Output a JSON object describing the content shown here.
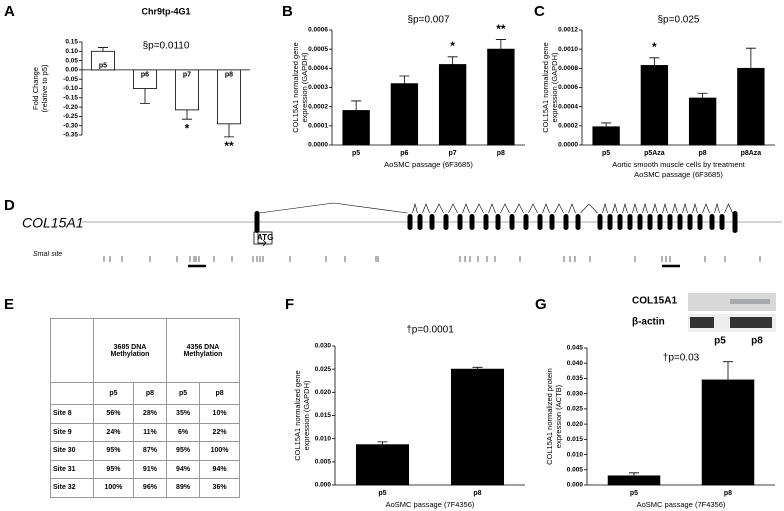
{
  "panels": [
    "A",
    "B",
    "C",
    "D",
    "E",
    "F",
    "G"
  ],
  "chart_data": [
    {
      "type": "bar",
      "title": "Chr9tp-4G1",
      "ylabel": [
        "Fold Change",
        "(relative to p5)"
      ],
      "categories": [
        "p5",
        "p6",
        "p7",
        "p8"
      ],
      "values": [
        0.1,
        -0.1,
        -0.215,
        -0.29
      ],
      "errors": [
        0.02,
        0.08,
        0.05,
        0.07
      ],
      "significance": [
        null,
        null,
        "*",
        "**"
      ],
      "annotation": "§p=0.0110",
      "color": "#ffffff",
      "ylim": [
        -0.35,
        0.15
      ],
      "yticks": [
        0.15,
        {
          "value": 0.1,
          "label": "0.10"
        },
        0.05,
        {
          "value": 0,
          "label": "0.00"
        },
        -0.05,
        {
          "value": -0.1,
          "label": "-0.10"
        },
        -0.15,
        {
          "value": -0.2,
          "label": "-0.20"
        },
        -0.25,
        {
          "value": -0.3,
          "label": "-0.30"
        },
        -0.35
      ]
    },
    {
      "type": "bar",
      "ylabel": [
        "COL15A1 normalized gene",
        "expression (GAPDH)"
      ],
      "xlabel": [
        "AoSMC passage (6F3685)"
      ],
      "categories": [
        "p5",
        "p6",
        "p7",
        "p8"
      ],
      "values": [
        0.00018,
        0.00032,
        0.00042,
        0.0005
      ],
      "errors": [
        5e-05,
        4e-05,
        4e-05,
        5e-05
      ],
      "significance": [
        null,
        null,
        "*",
        "**"
      ],
      "annotation": "§p=0.007",
      "color": "#000000",
      "ylim": [
        0,
        0.0006
      ],
      "yticks": [
        {
          "value": 0,
          "label": "0.0000"
        },
        {
          "value": 0.0001,
          "label": "0.0001"
        },
        {
          "value": 0.0002,
          "label": "0.0002"
        },
        {
          "value": 0.0003,
          "label": "0.0003"
        },
        {
          "value": 0.0004,
          "label": "0.0004"
        },
        {
          "value": 0.0005,
          "label": "0.0005"
        },
        {
          "value": 0.0006,
          "label": "0.0006"
        }
      ]
    },
    {
      "type": "bar",
      "ylabel": [
        "COL15A1 normalized gene",
        "expression (GAPDH)"
      ],
      "xlabel": [
        "Aortic smooth muscle cells by treatment",
        "AoSMC passage (6F3685)"
      ],
      "categories": [
        "p5",
        "p5Aza",
        "p8",
        "p8Aza"
      ],
      "values": [
        0.00019,
        0.00083,
        0.00049,
        0.0008
      ],
      "errors": [
        4e-05,
        8e-05,
        5e-05,
        0.00021
      ],
      "significance": [
        null,
        "*",
        null,
        null
      ],
      "annotation": "§p=0.025",
      "color": "#000000",
      "ylim": [
        0,
        0.0012
      ],
      "yticks": [
        {
          "value": 0,
          "label": "0.0000"
        },
        {
          "value": 0.0002,
          "label": "0.0002"
        },
        {
          "value": 0.0004,
          "label": "0.0004"
        },
        {
          "value": 0.0006,
          "label": "0.0006"
        },
        {
          "value": 0.0008,
          "label": "0.0008"
        },
        {
          "value": 0.001,
          "label": "0.0010"
        },
        {
          "value": 0.0012,
          "label": "0.0012"
        }
      ]
    },
    {
      "type": "bar",
      "ylabel": [
        "COL15A1 normalized gene",
        "expression (GAPDH)"
      ],
      "xlabel": [
        "AoSMC passage (7F4356)"
      ],
      "categories": [
        "p5",
        "p8"
      ],
      "values": [
        0.0087,
        0.025
      ],
      "errors": [
        0.0006,
        0.0004
      ],
      "annotation": "†p=0.0001",
      "color": "#000000",
      "ylim": [
        0,
        0.03
      ],
      "yticks": [
        {
          "value": 0,
          "label": "0.000"
        },
        {
          "value": 0.005,
          "label": "0.005"
        },
        {
          "value": 0.01,
          "label": "0.010"
        },
        {
          "value": 0.015,
          "label": "0.015"
        },
        {
          "value": 0.02,
          "label": "0.020"
        },
        {
          "value": 0.025,
          "label": "0.025"
        },
        {
          "value": 0.03,
          "label": "0.030"
        }
      ]
    },
    {
      "type": "bar",
      "ylabel": [
        "COL15A1 normalized protein",
        "expression (ACTB)"
      ],
      "xlabel": [
        "AoSMC passage (7F4356)"
      ],
      "categories": [
        "p5",
        "p8"
      ],
      "values": [
        0.003,
        0.0345
      ],
      "errors": [
        0.001,
        0.006
      ],
      "annotation": "†p=0.03",
      "color": "#000000",
      "ylim": [
        0,
        0.045
      ],
      "yticks": [
        {
          "value": 0,
          "label": "0.000"
        },
        {
          "value": 0.005,
          "label": "0.005"
        },
        {
          "value": 0.01,
          "label": "0.010"
        },
        {
          "value": 0.015,
          "label": "0.015"
        },
        {
          "value": 0.02,
          "label": "0.020"
        },
        {
          "value": 0.025,
          "label": "0.025"
        },
        {
          "value": 0.03,
          "label": "0.030"
        },
        {
          "value": 0.035,
          "label": "0.035"
        },
        {
          "value": 0.04,
          "label": "0.040"
        },
        {
          "value": 0.045,
          "label": "0.045"
        }
      ]
    }
  ],
  "gene": {
    "name": "COL15A1",
    "start_codon": "ATG",
    "site_label": "SmaI site"
  },
  "blot": {
    "bands": [
      "COL15A1",
      "β-actin"
    ],
    "lanes": [
      "p5",
      "p8"
    ]
  },
  "table": {
    "column_groups": [
      "3685 DNA Methylation",
      "4356 DNA Methylation"
    ],
    "subheaders": [
      "p5",
      "p8",
      "p5",
      "p8"
    ],
    "rows": [
      [
        "Site 8",
        "56%",
        "28%",
        "35%",
        "10%"
      ],
      [
        "Site 9",
        "24%",
        "11%",
        "6%",
        "22%"
      ],
      [
        "Site 30",
        "95%",
        "87%",
        "95%",
        "100%"
      ],
      [
        "Site 31",
        "95%",
        "91%",
        "94%",
        "94%"
      ],
      [
        "Site 32",
        "100%",
        "96%",
        "89%",
        "36%"
      ]
    ]
  }
}
